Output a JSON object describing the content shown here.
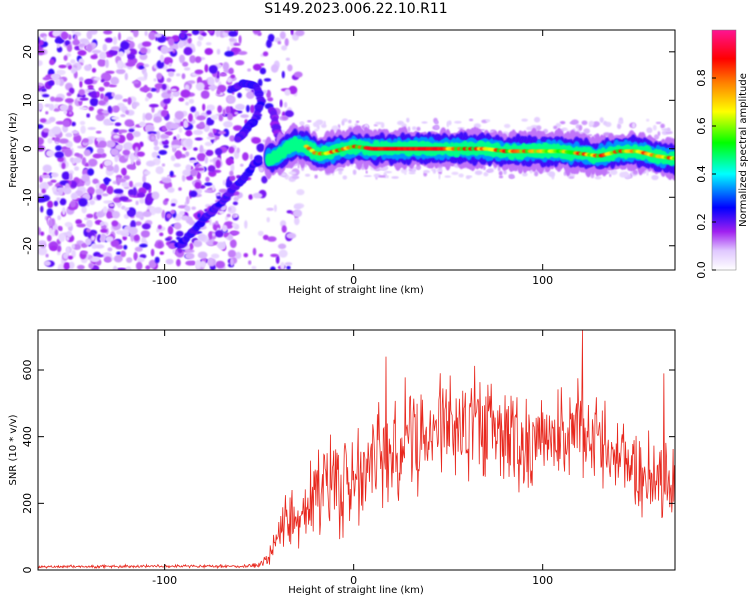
{
  "page_title": "S149.2023.006.22.10.R11",
  "chart_data": [
    {
      "type": "heatmap",
      "title": "S149.2023.006.22.10.R11",
      "xlabel": "Height of straight line (km)",
      "ylabel": "Frequency (Hz)",
      "xlim": [
        -167,
        170
      ],
      "ylim": [
        -25,
        24.5
      ],
      "x_ticks": [
        -100,
        0,
        100
      ],
      "y_ticks": [
        -20,
        -10,
        0,
        10,
        20
      ],
      "colorbar": {
        "label": "Normalized spectral amplitude",
        "range": [
          0.0,
          1.0
        ],
        "ticks": [
          0.0,
          0.2,
          0.4,
          0.6,
          0.8
        ],
        "colors": [
          "#ffffff",
          "#a020f0",
          "#0000ff",
          "#00ffff",
          "#00ff00",
          "#ffff00",
          "#ff8000",
          "#ff0000",
          "#ff1493"
        ]
      },
      "features": {
        "noise_region_x": [
          -167,
          -40
        ],
        "main_ridge": {
          "x": [
            -45,
            -40,
            -35,
            -30,
            -25,
            -20,
            -15,
            -10,
            -5,
            0,
            10,
            20,
            30,
            40,
            50,
            60,
            70,
            80,
            90,
            100,
            110,
            120,
            130,
            140,
            150,
            160,
            170
          ],
          "y": [
            -2,
            -1.5,
            0,
            1,
            0.5,
            -1,
            -1,
            -0.5,
            0,
            0.5,
            0,
            0,
            0,
            0,
            0,
            0,
            0,
            -0.5,
            -0.5,
            -0.5,
            -0.5,
            -1,
            -1.5,
            -0.5,
            -0.5,
            -1.5,
            -2
          ]
        },
        "upper_arc": {
          "x": [
            -65,
            -58,
            -52,
            -49,
            -52,
            -57,
            -61
          ],
          "y": [
            12,
            13.5,
            13,
            10,
            6,
            4,
            2
          ]
        },
        "lower_streak": {
          "x": [
            -92,
            -85,
            -78,
            -70,
            -63,
            -56,
            -50
          ],
          "y": [
            -20,
            -17,
            -14,
            -11,
            -8,
            -5,
            -2
          ]
        },
        "thin_streak": {
          "x": [
            -43,
            -40,
            -37
          ],
          "y": [
            8,
            3,
            -3
          ]
        }
      }
    },
    {
      "type": "line",
      "xlabel": "Height of straight line (km)",
      "ylabel": "SNR (10 * v/v)",
      "xlim": [
        -167,
        170
      ],
      "ylim": [
        0,
        720
      ],
      "x_ticks": [
        -100,
        0,
        100
      ],
      "y_ticks": [
        0,
        200,
        400,
        600
      ],
      "color": "#e8281e",
      "envelope": {
        "x": [
          -167,
          -60,
          -50,
          -45,
          -40,
          -35,
          -30,
          -20,
          -10,
          0,
          10,
          20,
          30,
          40,
          50,
          60,
          70,
          80,
          90,
          100,
          110,
          120,
          130,
          140,
          150,
          160,
          170
        ],
        "baseline": [
          10,
          12,
          15,
          40,
          110,
          150,
          180,
          230,
          260,
          240,
          330,
          380,
          400,
          430,
          460,
          440,
          420,
          400,
          370,
          390,
          410,
          420,
          380,
          330,
          300,
          280,
          250
        ],
        "amplitude": [
          5,
          6,
          10,
          30,
          60,
          100,
          150,
          170,
          180,
          190,
          200,
          210,
          220,
          200,
          190,
          190,
          200,
          190,
          180,
          170,
          170,
          180,
          160,
          150,
          140,
          150,
          160
        ]
      },
      "notable_peaks": [
        {
          "x": 121,
          "y": 720
        },
        {
          "x": 17,
          "y": 640
        },
        {
          "x": 164,
          "y": 590
        }
      ]
    }
  ]
}
